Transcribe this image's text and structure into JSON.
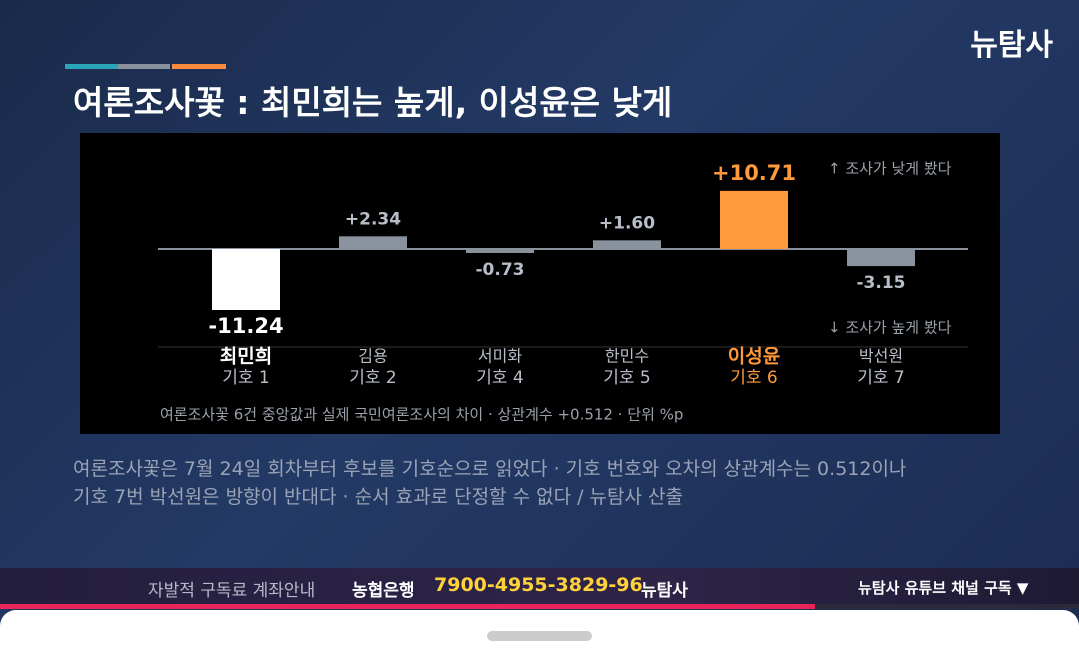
{
  "header": {
    "logo": "뉴탐사",
    "title": "여론조사꽃 : 최민희는 높게, 이성윤은 낮게"
  },
  "chart_data": {
    "type": "bar",
    "categories": [
      "최민희",
      "김용",
      "서미화",
      "한민수",
      "이성윤",
      "박선원"
    ],
    "ballot_numbers": [
      "기호 1",
      "기호 2",
      "기호 4",
      "기호 5",
      "기호 6",
      "기호 7"
    ],
    "values": [
      -11.24,
      2.34,
      -0.73,
      1.6,
      10.71,
      -3.15
    ],
    "value_labels": [
      "-11.24",
      "+2.34",
      "-0.73",
      "+1.60",
      "+10.71",
      "-3.15"
    ],
    "colors": [
      "#ffffff",
      "#8a929e",
      "#8a929e",
      "#8a929e",
      "#ff9a3c",
      "#8a929e"
    ],
    "label_colors": [
      "#ffffff",
      "#b8bec8",
      "#b8bec8",
      "#b8bec8",
      "#ff9a3c",
      "#b8bec8"
    ],
    "annotations": [
      "↑ 조사가 낮게 봤다",
      "↓ 조사가 높게 봤다"
    ],
    "note": "여론조사꽃 6건 중앙값과 실제 국민여론조사의 차이 · 상관계수 +0.512 · 단위 %p"
  },
  "caption": [
    "여론조사꽃은 7월 24일 회차부터 후보를 기호순으로 읽었다 · 기호 번호와 오차의 상관계수는 0.512이나",
    "기호 7번 박선원은 방향이 반대다 · 순서 효과로 단정할 수 없다 / 뉴탐사 산출"
  ],
  "ticker": {
    "intro": "자발적 구독료 계좌안내",
    "bank": "농협은행",
    "account": "7900-4955-3829-96",
    "holder": "뉴탐사",
    "subscribe": "뉴탐사 유튜브 채널 구독 ▼"
  }
}
